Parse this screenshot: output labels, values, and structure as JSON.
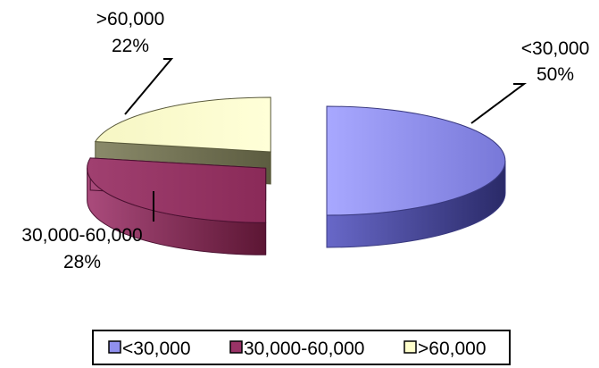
{
  "chart_data": {
    "type": "pie",
    "style": "3d-exploded",
    "title": "",
    "slices": [
      {
        "name": "<30,000",
        "value": 50,
        "label_name": "<30,000",
        "label_value": "50%",
        "color": "#9090ee"
      },
      {
        "name": "30,000-60,000",
        "value": 28,
        "label_name": "30,000-60,000",
        "label_value": "28%",
        "color": "#993366"
      },
      {
        "name": ">60,000",
        "value": 22,
        "label_name": ">60,000",
        "label_value": "22%",
        "color": "#ffffcc"
      }
    ],
    "legend_position": "bottom",
    "legend": [
      "<30,000",
      "30,000-60,000",
      ">60,000"
    ]
  }
}
